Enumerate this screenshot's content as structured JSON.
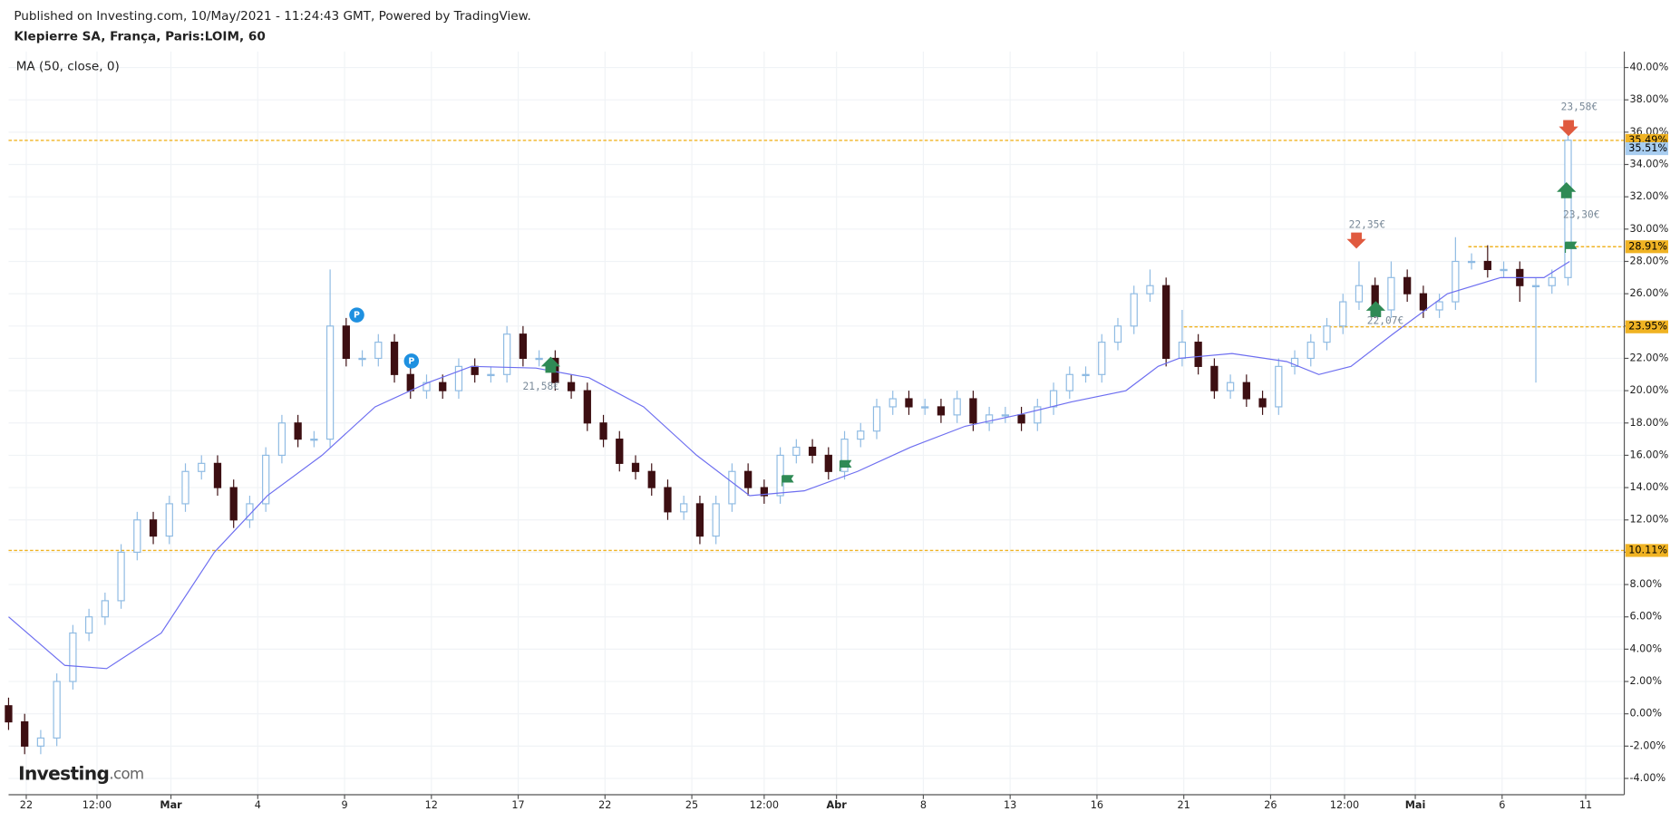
{
  "header": {
    "published": "Published on Investing.com, 10/May/2021 - 11:24:43 GMT, Powered by TradingView.",
    "symbol": "Klepierre SA, França, Paris:LOIM, 60"
  },
  "chart_data": {
    "type": "candlestick",
    "indicator": "MA (50, close, 0)",
    "watermark": {
      "brand": "Investing",
      "suffix": ".com"
    },
    "x": [
      0,
      1,
      2,
      3,
      4,
      5,
      6,
      7,
      8,
      9,
      10,
      11,
      12,
      13,
      14,
      15,
      16,
      17,
      18,
      19,
      20,
      21,
      22,
      23,
      24,
      25,
      26,
      27,
      28,
      29,
      30,
      31,
      32,
      33,
      34,
      35,
      36,
      37,
      38,
      39,
      40,
      41,
      42,
      43,
      44,
      45,
      46,
      47,
      48,
      49,
      50,
      51,
      52,
      53,
      54,
      55,
      56,
      57,
      58,
      59,
      60,
      61,
      62,
      63,
      64,
      65,
      66,
      67,
      68,
      69,
      70,
      71,
      72,
      73,
      74,
      75,
      76,
      77,
      78,
      79,
      80,
      81,
      82,
      83,
      84,
      85,
      86,
      87,
      88,
      89,
      90,
      91,
      92,
      93,
      94,
      95,
      96,
      97
    ],
    "open": [
      0.5,
      -0.5,
      -2,
      -1.5,
      2,
      5,
      6,
      7,
      10,
      12,
      11,
      13,
      15,
      15.5,
      14,
      12,
      13,
      16,
      18,
      17,
      17,
      24,
      22,
      22,
      23,
      21,
      20,
      20.5,
      20,
      21.5,
      21,
      21,
      23.5,
      22,
      22,
      20.5,
      20,
      18,
      17,
      15.5,
      15,
      14,
      12.5,
      13,
      11,
      13,
      15,
      14,
      13.5,
      16,
      16.5,
      16,
      15,
      17,
      17.5,
      19,
      19.5,
      19,
      19,
      18.5,
      19.5,
      18,
      18.5,
      18.5,
      18,
      19,
      20,
      21,
      21,
      23,
      24,
      26,
      26.5,
      22,
      23,
      21.5,
      20,
      20.5,
      19.5,
      19,
      21.5,
      22,
      23,
      24,
      25.5,
      26.5,
      25,
      27,
      26,
      25,
      25.5,
      28,
      28,
      27.5,
      27.5,
      26.5,
      26.5,
      27
    ],
    "high": [
      1,
      0,
      -1,
      2.5,
      5.5,
      6.5,
      7.5,
      10.5,
      12.5,
      12.5,
      13.5,
      15.5,
      16,
      16,
      14.5,
      13.5,
      16.5,
      18.5,
      18.5,
      17.5,
      27.5,
      24.5,
      22.5,
      23.5,
      23.5,
      21.5,
      21,
      21,
      22,
      22,
      21.5,
      24,
      24,
      22.5,
      22.5,
      21,
      20.5,
      18.5,
      17.5,
      16,
      15.5,
      14.5,
      13.5,
      13.5,
      13.5,
      15.5,
      15.5,
      14.5,
      16.5,
      17,
      17,
      16.5,
      17.5,
      18,
      19.5,
      20,
      20,
      19.5,
      19.5,
      20,
      20,
      19,
      19,
      19,
      19.5,
      20.5,
      21.5,
      21.5,
      23.5,
      24.5,
      26.5,
      27.5,
      27,
      25,
      23.5,
      22,
      21,
      21,
      20,
      22,
      22.5,
      23.5,
      24.5,
      26,
      28,
      27,
      28,
      27.5,
      26.5,
      26,
      29.5,
      28.5,
      29,
      28,
      28,
      27,
      27.5,
      36
    ],
    "low": [
      -1,
      -2.5,
      -2.5,
      -2,
      1.5,
      4.5,
      5.5,
      6.5,
      9.5,
      10.5,
      10.5,
      12.5,
      14.5,
      13.5,
      11.5,
      11.5,
      12.5,
      15.5,
      16.5,
      16.5,
      16.5,
      21.5,
      21.5,
      21.5,
      20.5,
      19.5,
      19.5,
      19.5,
      19.5,
      20.5,
      20.5,
      20.5,
      21.5,
      21.5,
      20,
      19.5,
      17.5,
      16.5,
      15,
      14.5,
      13.5,
      12,
      12,
      10.5,
      10.5,
      12.5,
      13.5,
      13,
      13,
      15.5,
      15.5,
      14.5,
      14.5,
      16.5,
      17,
      18.5,
      18.5,
      18.5,
      18,
      18,
      17.5,
      17.5,
      18,
      17.5,
      17.5,
      18.5,
      19.5,
      20.5,
      20.5,
      22.5,
      23.5,
      25.5,
      21.5,
      21.5,
      21,
      19.5,
      19.5,
      19,
      18.5,
      18.5,
      21,
      21.5,
      22.5,
      23.5,
      25,
      24.5,
      24.5,
      25.5,
      24.5,
      24.5,
      25,
      27.5,
      27,
      27,
      25.5,
      20.5,
      26,
      26.5
    ],
    "close": [
      -0.5,
      -2,
      -1.5,
      2,
      5,
      6,
      7,
      10,
      12,
      11,
      13,
      15,
      15.5,
      14,
      12,
      13,
      16,
      18,
      17,
      17,
      24,
      22,
      22,
      23,
      21,
      20,
      20.5,
      20,
      21.5,
      21,
      21,
      23.5,
      22,
      22,
      20.5,
      20,
      18,
      17,
      15.5,
      15,
      14,
      12.5,
      13,
      11,
      13,
      15,
      14,
      13.5,
      16,
      16.5,
      16,
      15,
      17,
      17.5,
      19,
      19.5,
      19,
      19,
      18.5,
      19.5,
      18,
      18.5,
      18.5,
      18,
      19,
      20,
      21,
      21,
      23,
      24,
      26,
      26.5,
      22,
      23,
      21.5,
      20,
      20.5,
      19.5,
      19,
      21.5,
      22,
      23,
      24,
      25.5,
      26.5,
      25,
      27,
      26,
      25,
      25.5,
      28,
      28,
      27.5,
      27.5,
      26.5,
      26.5,
      27,
      35.5
    ],
    "up_color": "#8fbbe3",
    "down_color": "#3d0f12",
    "ma": {
      "color": "#6d6ef0",
      "x": [
        0,
        3.5,
        6.1,
        9.5,
        12.8,
        16.1,
        19.5,
        22.8,
        26.1,
        28.8,
        32.8,
        36.1,
        39.5,
        42.8,
        46.1,
        49.5,
        52.8,
        56.1,
        59.5,
        62.8,
        66.1,
        69.5,
        71.5,
        72.8,
        76.1,
        79.5,
        81.5,
        83.5,
        86.1,
        89.5,
        92.8,
        95.5,
        97.1
      ],
      "values": [
        6,
        3,
        2.8,
        5,
        10,
        13.5,
        16,
        19,
        20.5,
        21.5,
        21.4,
        20.8,
        19,
        16,
        13.5,
        13.8,
        15,
        16.5,
        17.8,
        18.5,
        19.3,
        20,
        21.5,
        22,
        22.3,
        21.8,
        21,
        21.5,
        23.5,
        26,
        27,
        27,
        28
      ]
    },
    "levels": [
      {
        "value": 35.49,
        "label": "35.49%",
        "from": 0
      },
      {
        "value": 28.91,
        "label": "28.91%",
        "from": 90.8
      },
      {
        "value": 23.95,
        "label": "23.95%",
        "from": 73.1
      },
      {
        "value": 10.11,
        "label": "10.11%",
        "from": 0
      }
    ],
    "level_color": "#f0b323",
    "last_price": {
      "value": 35.51,
      "label": "35.51%"
    },
    "annotations": [
      "23,58€",
      "23,30€",
      "22,35€",
      "22,07€",
      "21,58€"
    ],
    "xlim": [
      0,
      100.5
    ],
    "ylim": [
      -5.01,
      40.99
    ],
    "xticks": [
      {
        "value": 1.1,
        "label": "22"
      },
      {
        "value": 5.5,
        "label": "12:00"
      },
      {
        "value": 10.1,
        "label": "Mar"
      },
      {
        "value": 15.5,
        "label": "4"
      },
      {
        "value": 20.9,
        "label": "9"
      },
      {
        "value": 26.3,
        "label": "12"
      },
      {
        "value": 31.7,
        "label": "17"
      },
      {
        "value": 37.1,
        "label": "22"
      },
      {
        "value": 42.5,
        "label": "25"
      },
      {
        "value": 47,
        "label": "12:00"
      },
      {
        "value": 51.5,
        "label": "Abr"
      },
      {
        "value": 56.9,
        "label": "8"
      },
      {
        "value": 62.3,
        "label": "13"
      },
      {
        "value": 67.7,
        "label": "16"
      },
      {
        "value": 73.1,
        "label": "21"
      },
      {
        "value": 78.5,
        "label": "26"
      },
      {
        "value": 83.1,
        "label": "12:00"
      },
      {
        "value": 87.5,
        "label": "Mai"
      },
      {
        "value": 92.9,
        "label": "6"
      },
      {
        "value": 98.1,
        "label": "11"
      }
    ],
    "yticks": [
      {
        "value": -4,
        "label": "-4.00%"
      },
      {
        "value": -2,
        "label": "-2.00%"
      },
      {
        "value": 0,
        "label": "0.00%"
      },
      {
        "value": 2,
        "label": "2.00%"
      },
      {
        "value": 4,
        "label": "4.00%"
      },
      {
        "value": 6,
        "label": "6.00%"
      },
      {
        "value": 8,
        "label": "8.00%"
      },
      {
        "value": 10,
        "label": "10.00%"
      },
      {
        "value": 12,
        "label": "12.00%"
      },
      {
        "value": 14,
        "label": "14.00%"
      },
      {
        "value": 16,
        "label": "16.00%"
      },
      {
        "value": 18,
        "label": "18.00%"
      },
      {
        "value": 20,
        "label": "20.00%"
      },
      {
        "value": 22,
        "label": "22.00%"
      },
      {
        "value": 24,
        "label": "24.00%"
      },
      {
        "value": 26,
        "label": "26.00%"
      },
      {
        "value": 28,
        "label": "28.00%"
      },
      {
        "value": 30,
        "label": "30.00%"
      },
      {
        "value": 32,
        "label": "32.00%"
      },
      {
        "value": 34,
        "label": "34.00%"
      },
      {
        "value": 36,
        "label": "36.00%"
      },
      {
        "value": 38,
        "label": "38.00%"
      },
      {
        "value": 40,
        "label": "40.00%"
      }
    ],
    "grid": true
  }
}
